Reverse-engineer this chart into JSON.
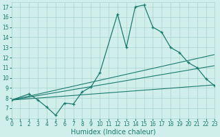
{
  "xlabel": "Humidex (Indice chaleur)",
  "x_main": [
    0,
    2,
    3,
    4,
    5,
    6,
    7,
    8,
    9,
    10,
    12,
    13,
    14,
    15,
    16,
    17,
    18,
    19,
    20,
    21,
    22,
    23
  ],
  "y_main": [
    7.8,
    8.4,
    7.8,
    7.1,
    6.3,
    7.5,
    7.4,
    8.6,
    9.1,
    10.5,
    16.3,
    13.0,
    17.0,
    17.2,
    15.0,
    14.5,
    13.0,
    12.5,
    11.5,
    11.0,
    9.9,
    9.2
  ],
  "trend1_x": [
    0,
    23
  ],
  "trend1_y": [
    7.8,
    9.3
  ],
  "trend2_x": [
    0,
    23
  ],
  "trend2_y": [
    7.8,
    11.2
  ],
  "trend3_x": [
    0,
    23
  ],
  "trend3_y": [
    7.8,
    12.3
  ],
  "ylim": [
    6,
    17.5
  ],
  "xlim": [
    0,
    23
  ],
  "yticks": [
    6,
    7,
    8,
    9,
    10,
    11,
    12,
    13,
    14,
    15,
    16,
    17
  ],
  "xticks": [
    0,
    1,
    2,
    3,
    4,
    5,
    6,
    7,
    8,
    9,
    10,
    11,
    12,
    13,
    14,
    15,
    16,
    17,
    18,
    19,
    20,
    21,
    22,
    23
  ],
  "line_color": "#1a7a6e",
  "bg_color": "#d0eeea",
  "grid_color": "#aad4ce",
  "tick_fontsize": 5.5,
  "label_fontsize": 7
}
